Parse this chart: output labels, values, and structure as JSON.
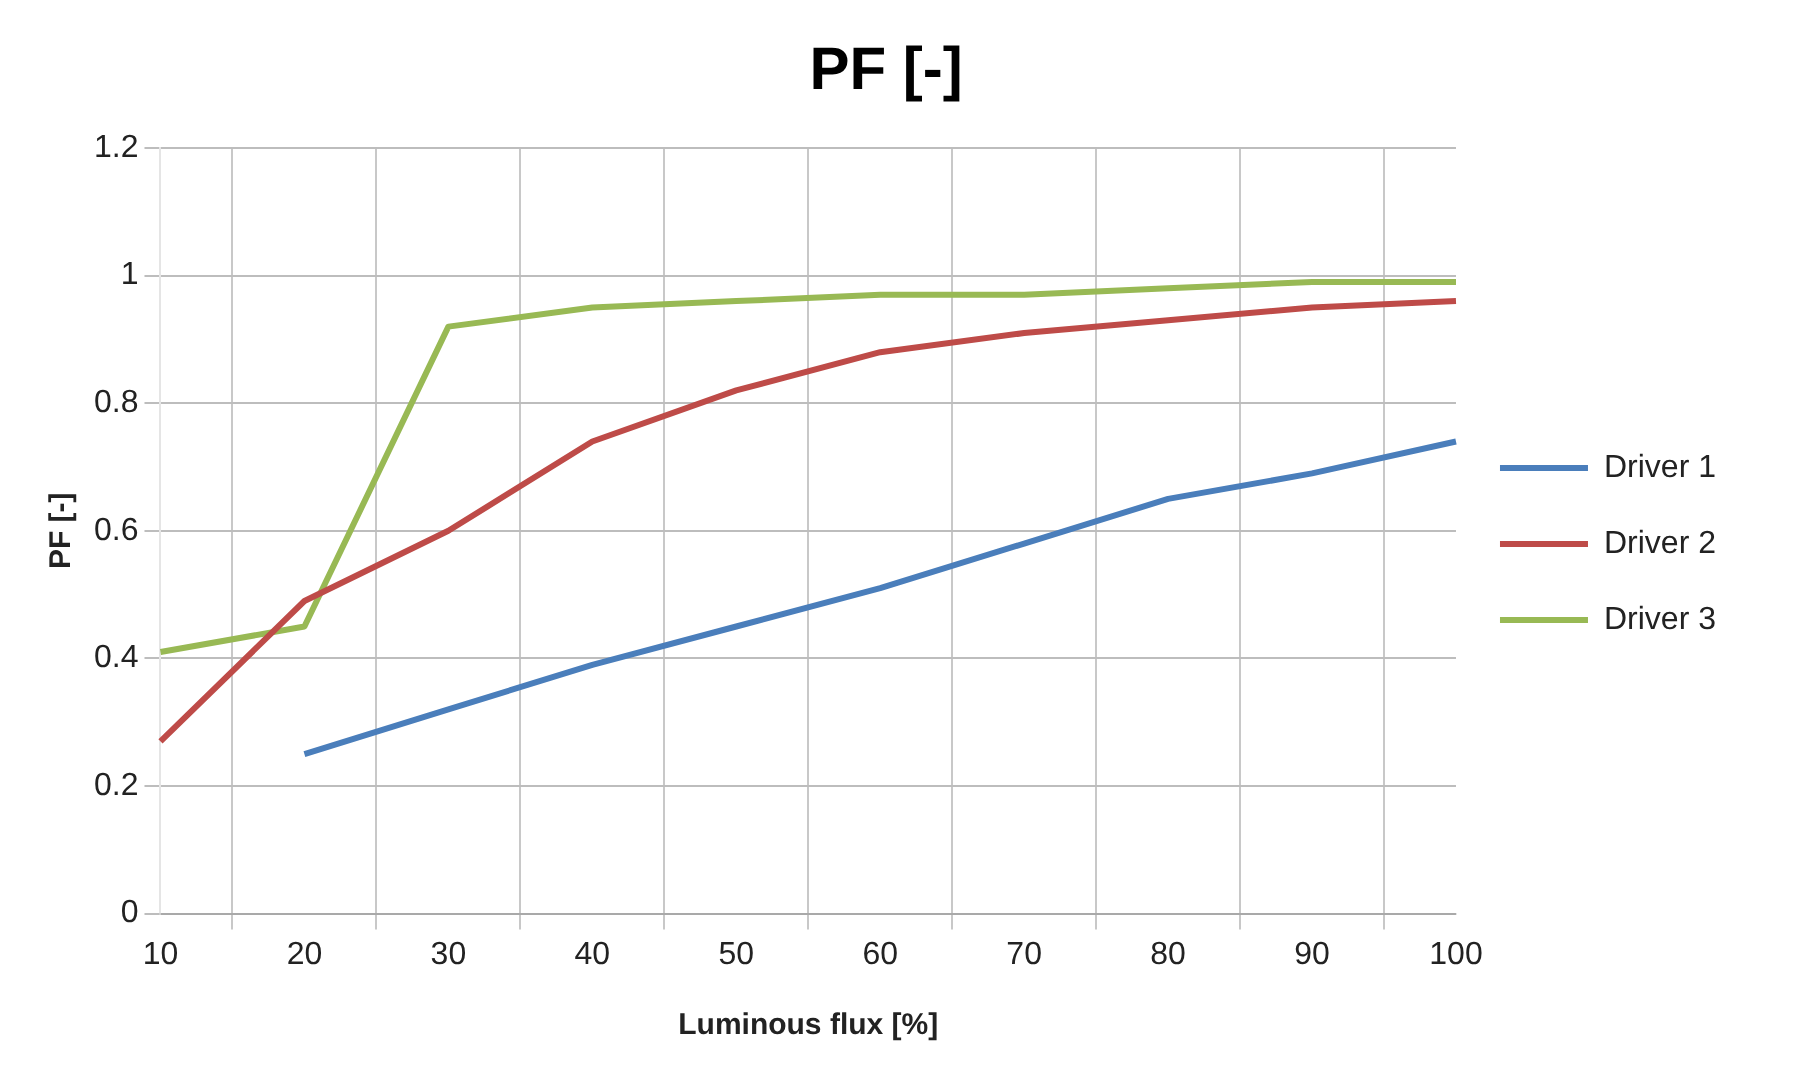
{
  "chart_data": {
    "type": "line",
    "title": "PF [-]",
    "xlabel": "Luminous flux [%]",
    "ylabel": "PF [-]",
    "categories": [
      "10",
      "20",
      "30",
      "40",
      "50",
      "60",
      "70",
      "80",
      "90",
      "100"
    ],
    "series": [
      {
        "name": "Driver 1",
        "color": "#4a7ebb",
        "values": [
          null,
          0.25,
          0.32,
          0.39,
          0.45,
          0.51,
          0.58,
          0.65,
          0.69,
          0.74
        ]
      },
      {
        "name": "Driver 2",
        "color": "#be4b48",
        "values": [
          0.27,
          0.49,
          0.6,
          0.74,
          0.82,
          0.88,
          0.91,
          0.93,
          0.95,
          0.96
        ]
      },
      {
        "name": "Driver 3",
        "color": "#98b954",
        "values": [
          0.41,
          0.45,
          0.92,
          0.95,
          0.96,
          0.97,
          0.97,
          0.98,
          0.99,
          0.99
        ]
      }
    ],
    "ylim": [
      0,
      1.2
    ],
    "yticks": [
      0,
      0.2,
      0.4,
      0.6,
      0.8,
      1,
      1.2
    ],
    "grid": true,
    "legend": "right",
    "marker": "none",
    "line_style": "solid"
  }
}
